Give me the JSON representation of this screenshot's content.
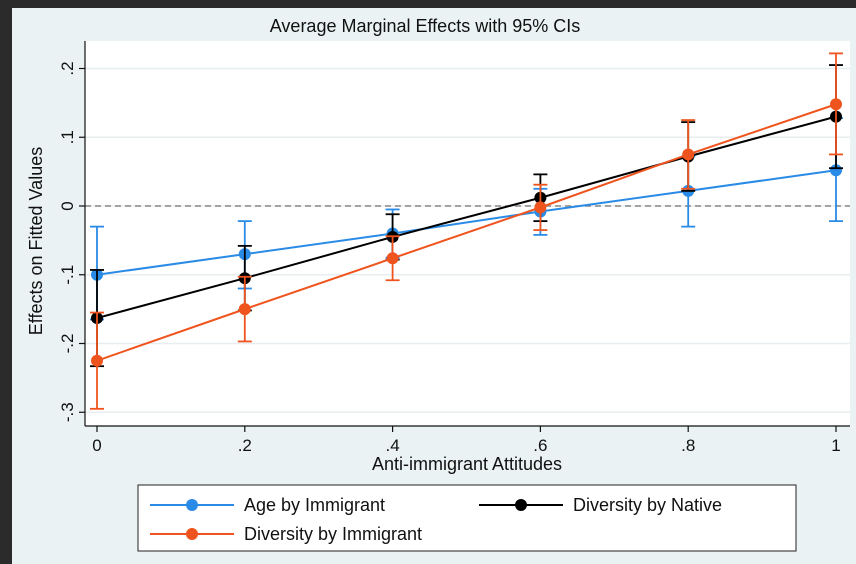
{
  "chart_data": {
    "type": "line",
    "title": "Average Marginal Effects with 95% CIs",
    "xlabel": "Anti-immigrant Attitudes",
    "ylabel": "Effects on Fitted Values",
    "x": [
      0,
      0.2,
      0.4,
      0.6,
      0.8,
      1.0
    ],
    "xtick_labels": [
      "0",
      ".2",
      ".4",
      ".6",
      ".8",
      "1"
    ],
    "xlim": [
      0,
      1
    ],
    "ylim": [
      -0.32,
      0.24
    ],
    "yticks": [
      -0.3,
      -0.2,
      -0.1,
      0,
      0.1,
      0.2
    ],
    "ytick_labels": [
      "-.3",
      "-.2",
      "-.1",
      "0",
      ".1",
      ".2"
    ],
    "grid": true,
    "reference_line": 0,
    "series": [
      {
        "name": "Age by Immigrant",
        "color": "#2a8be6",
        "values": [
          -0.1,
          -0.07,
          -0.04,
          -0.008,
          0.022,
          0.052
        ],
        "ci_low": [
          -0.165,
          -0.12,
          -0.075,
          -0.042,
          -0.03,
          -0.022
        ],
        "ci_high": [
          -0.03,
          -0.022,
          -0.005,
          0.025,
          0.072,
          0.128
        ]
      },
      {
        "name": "Diversity by Native",
        "color": "#000000",
        "values": [
          -0.163,
          -0.105,
          -0.045,
          0.012,
          0.072,
          0.13
        ],
        "ci_low": [
          -0.233,
          -0.152,
          -0.078,
          -0.022,
          0.022,
          0.055
        ],
        "ci_high": [
          -0.093,
          -0.058,
          -0.012,
          0.046,
          0.122,
          0.205
        ]
      },
      {
        "name": "Diversity by Immigrant",
        "color": "#f0541e",
        "values": [
          -0.225,
          -0.15,
          -0.076,
          -0.002,
          0.075,
          0.148
        ],
        "ci_low": [
          -0.295,
          -0.197,
          -0.108,
          -0.035,
          0.025,
          0.075
        ],
        "ci_high": [
          -0.155,
          -0.103,
          -0.044,
          0.031,
          0.125,
          0.222
        ]
      }
    ],
    "legend": {
      "position": "bottom",
      "order": [
        "Age by Immigrant",
        "Diversity by Native",
        "Diversity by Immigrant"
      ]
    }
  }
}
